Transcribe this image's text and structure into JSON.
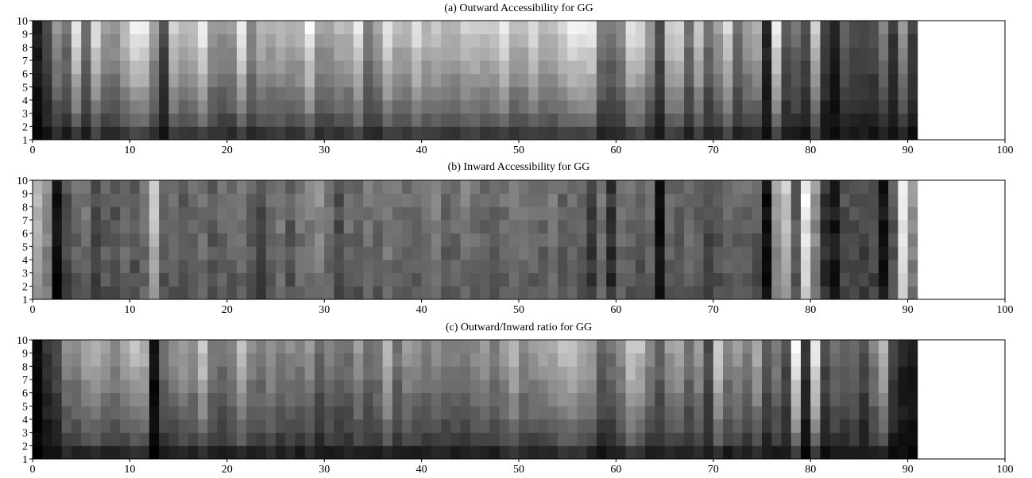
{
  "chart_data": [
    {
      "type": "heatmap",
      "title": "(a)  Outward Accessibility for GG",
      "xlabel": "",
      "ylabel": "",
      "xlim": [
        0,
        100
      ],
      "ylim": [
        1,
        10
      ],
      "x_ticks": [
        "0",
        "10",
        "20",
        "30",
        "40",
        "50",
        "60",
        "70",
        "80",
        "90",
        "100"
      ],
      "y_ticks": [
        "1",
        "2",
        "3",
        "4",
        "5",
        "6",
        "7",
        "8",
        "9",
        "10"
      ],
      "columns": 91,
      "rows": 9,
      "colormap": "gray",
      "seed": 11,
      "column_base": [
        0.12,
        0.3,
        0.6,
        0.45,
        0.88,
        0.45,
        0.88,
        0.62,
        0.6,
        0.75,
        0.92,
        0.92,
        0.62,
        0.3,
        0.82,
        0.72,
        0.75,
        0.95,
        0.62,
        0.58,
        0.62,
        0.95,
        0.55,
        0.72,
        0.68,
        0.72,
        0.68,
        0.72,
        0.95,
        0.62,
        0.62,
        0.72,
        0.7,
        0.92,
        0.5,
        0.62,
        0.92,
        0.72,
        0.72,
        0.9,
        0.72,
        0.78,
        0.72,
        0.72,
        0.8,
        0.8,
        0.78,
        0.8,
        0.95,
        0.72,
        0.72,
        0.88,
        0.72,
        0.72,
        0.85,
        0.92,
        0.92,
        0.92,
        0.5,
        0.45,
        0.55,
        0.88,
        0.85,
        0.6,
        0.3,
        0.8,
        0.85,
        0.45,
        0.8,
        0.45,
        0.62,
        0.85,
        0.45,
        0.62,
        0.7,
        0.15,
        0.92,
        0.35,
        0.45,
        0.3,
        0.8,
        0.25,
        0.12,
        0.4,
        0.32,
        0.3,
        0.3,
        0.5,
        0.22,
        0.62,
        0.25
      ]
    },
    {
      "type": "heatmap",
      "title": "(b)  Inward Accessibility for GG",
      "xlabel": "",
      "ylabel": "",
      "xlim": [
        0,
        100
      ],
      "ylim": [
        1,
        10
      ],
      "x_ticks": [
        "0",
        "10",
        "20",
        "30",
        "40",
        "50",
        "60",
        "70",
        "80",
        "90",
        "100"
      ],
      "y_ticks": [
        "1",
        "2",
        "3",
        "4",
        "5",
        "6",
        "7",
        "8",
        "9",
        "10"
      ],
      "columns": 91,
      "rows": 9,
      "colormap": "gray",
      "seed": 23,
      "column_base": [
        0.7,
        0.55,
        0.05,
        0.3,
        0.4,
        0.45,
        0.3,
        0.38,
        0.32,
        0.42,
        0.35,
        0.45,
        0.75,
        0.38,
        0.4,
        0.35,
        0.42,
        0.45,
        0.35,
        0.42,
        0.4,
        0.45,
        0.38,
        0.3,
        0.42,
        0.48,
        0.35,
        0.45,
        0.5,
        0.55,
        0.45,
        0.3,
        0.42,
        0.38,
        0.45,
        0.4,
        0.5,
        0.45,
        0.42,
        0.4,
        0.45,
        0.5,
        0.4,
        0.42,
        0.48,
        0.45,
        0.4,
        0.38,
        0.42,
        0.5,
        0.45,
        0.42,
        0.4,
        0.45,
        0.38,
        0.42,
        0.4,
        0.25,
        0.45,
        0.2,
        0.42,
        0.4,
        0.35,
        0.42,
        0.05,
        0.4,
        0.35,
        0.42,
        0.38,
        0.3,
        0.35,
        0.42,
        0.38,
        0.4,
        0.35,
        0.05,
        0.6,
        0.75,
        0.35,
        0.92,
        0.55,
        0.2,
        0.1,
        0.3,
        0.32,
        0.28,
        0.3,
        0.1,
        0.35,
        0.92,
        0.55
      ]
    },
    {
      "type": "heatmap",
      "title": "(c)  Outward/Inward ratio for GG",
      "xlabel": "",
      "ylabel": "",
      "xlim": [
        0,
        100
      ],
      "ylim": [
        1,
        10
      ],
      "x_ticks": [
        "0",
        "10",
        "20",
        "30",
        "40",
        "50",
        "60",
        "70",
        "80",
        "90",
        "100"
      ],
      "y_ticks": [
        "1",
        "2",
        "3",
        "4",
        "5",
        "6",
        "7",
        "8",
        "9",
        "10"
      ],
      "columns": 91,
      "rows": 9,
      "colormap": "gray",
      "seed": 37,
      "column_base": [
        0.05,
        0.2,
        0.3,
        0.55,
        0.55,
        0.65,
        0.72,
        0.6,
        0.55,
        0.65,
        0.75,
        0.7,
        0.05,
        0.45,
        0.55,
        0.65,
        0.55,
        0.8,
        0.5,
        0.45,
        0.55,
        0.75,
        0.55,
        0.5,
        0.6,
        0.5,
        0.55,
        0.5,
        0.6,
        0.4,
        0.5,
        0.45,
        0.45,
        0.6,
        0.45,
        0.5,
        0.75,
        0.45,
        0.6,
        0.55,
        0.5,
        0.55,
        0.5,
        0.5,
        0.5,
        0.55,
        0.6,
        0.5,
        0.6,
        0.75,
        0.55,
        0.6,
        0.65,
        0.65,
        0.75,
        0.78,
        0.7,
        0.65,
        0.4,
        0.45,
        0.55,
        0.82,
        0.75,
        0.55,
        0.4,
        0.6,
        0.65,
        0.45,
        0.6,
        0.3,
        0.82,
        0.5,
        0.6,
        0.5,
        0.68,
        0.35,
        0.5,
        0.3,
        0.95,
        0.2,
        0.95,
        0.3,
        0.45,
        0.4,
        0.45,
        0.3,
        0.5,
        0.72,
        0.25,
        0.15,
        0.1
      ]
    }
  ]
}
